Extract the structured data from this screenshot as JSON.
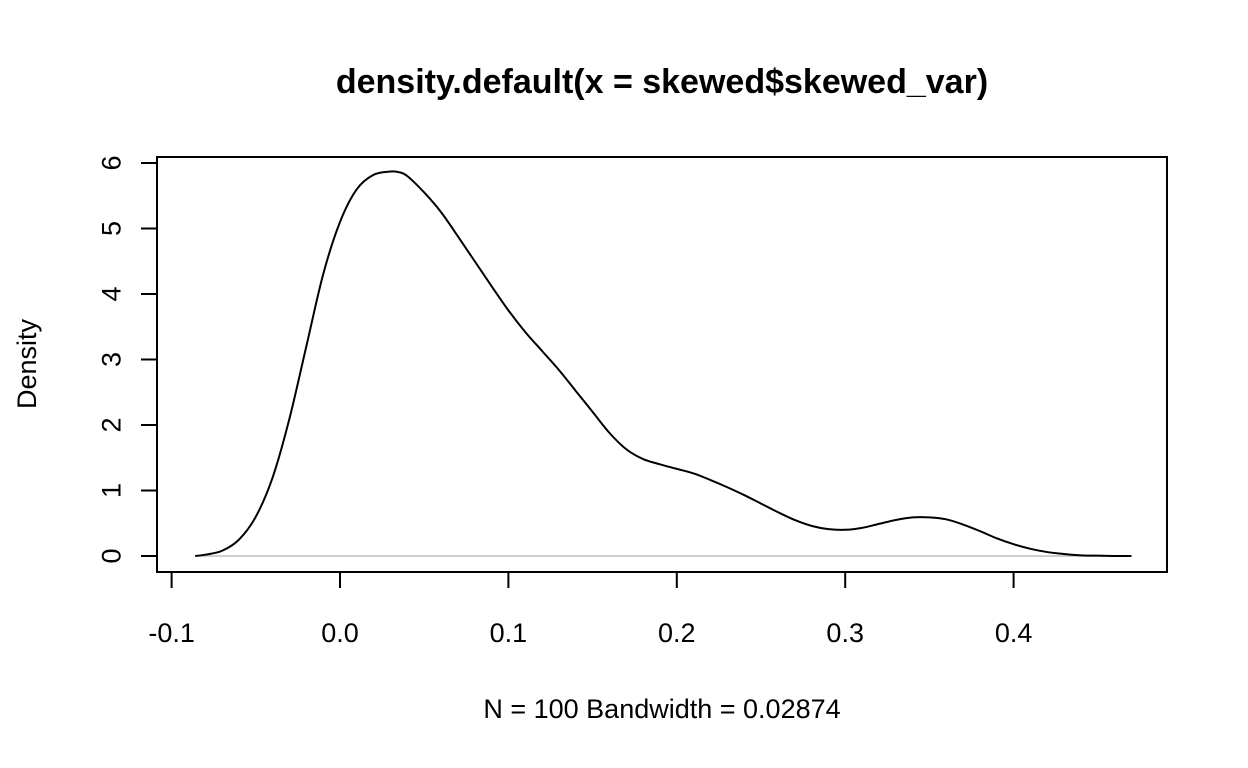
{
  "chart_data": {
    "type": "line",
    "title": "density.default(x = skewed$skewed_var)",
    "xlabel": "N = 100   Bandwidth = 0.02874",
    "ylabel": "Density",
    "x_ticks": [
      "-0.1",
      "0.0",
      "0.1",
      "0.2",
      "0.3",
      "0.4"
    ],
    "y_ticks": [
      "0",
      "1",
      "2",
      "3",
      "4",
      "5",
      "6"
    ],
    "xlim": [
      -0.1,
      0.47
    ],
    "ylim": [
      0,
      6
    ],
    "zero_line_color": "#bebebe",
    "line_color": "#000000",
    "series": [
      {
        "x": [
          -0.086,
          -0.08,
          -0.07,
          -0.06,
          -0.05,
          -0.04,
          -0.03,
          -0.02,
          -0.01,
          0.0,
          0.01,
          0.02,
          0.03,
          0.035,
          0.04,
          0.05,
          0.06,
          0.07,
          0.08,
          0.09,
          0.1,
          0.11,
          0.12,
          0.13,
          0.14,
          0.15,
          0.16,
          0.17,
          0.18,
          0.19,
          0.2,
          0.21,
          0.22,
          0.23,
          0.24,
          0.25,
          0.26,
          0.27,
          0.28,
          0.29,
          0.3,
          0.31,
          0.32,
          0.33,
          0.34,
          0.35,
          0.36,
          0.37,
          0.38,
          0.39,
          0.4,
          0.41,
          0.42,
          0.43,
          0.44,
          0.45,
          0.46,
          0.47
        ],
        "y": [
          0.0,
          0.02,
          0.08,
          0.25,
          0.6,
          1.2,
          2.1,
          3.2,
          4.3,
          5.1,
          5.6,
          5.82,
          5.87,
          5.86,
          5.8,
          5.55,
          5.25,
          4.88,
          4.5,
          4.12,
          3.75,
          3.42,
          3.13,
          2.84,
          2.52,
          2.2,
          1.88,
          1.63,
          1.48,
          1.4,
          1.33,
          1.26,
          1.16,
          1.05,
          0.93,
          0.8,
          0.67,
          0.55,
          0.46,
          0.41,
          0.4,
          0.43,
          0.49,
          0.55,
          0.59,
          0.59,
          0.56,
          0.48,
          0.38,
          0.27,
          0.18,
          0.11,
          0.06,
          0.03,
          0.01,
          0.005,
          0.0,
          0.0
        ]
      }
    ]
  }
}
